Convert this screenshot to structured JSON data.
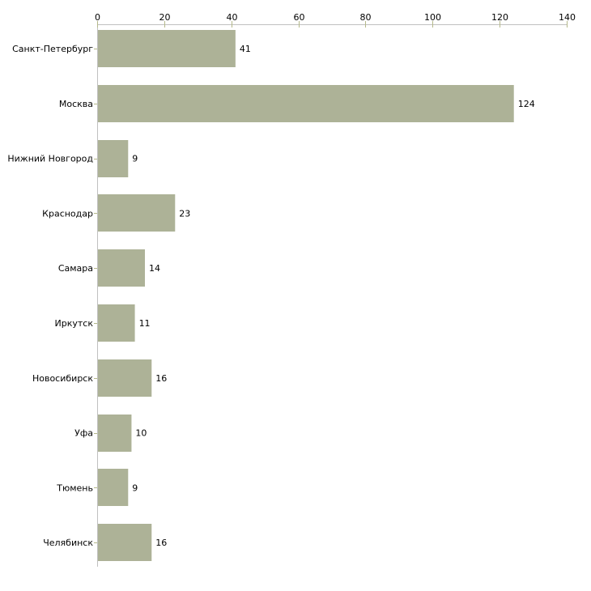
{
  "chart_data": {
    "type": "bar",
    "orientation": "horizontal",
    "categories": [
      "Санкт-Петербург",
      "Москва",
      "Нижний Новгород",
      "Краснодар",
      "Самара",
      "Иркутск",
      "Новосибирск",
      "Уфа",
      "Тюмень",
      "Челябинск"
    ],
    "values": [
      41,
      124,
      9,
      23,
      14,
      11,
      16,
      10,
      9,
      16
    ],
    "xlim": [
      0,
      140
    ],
    "xticks": [
      0,
      20,
      40,
      60,
      80,
      100,
      120,
      140
    ],
    "xtick_labels": [
      "0",
      "20",
      "40",
      "60",
      "80",
      "100",
      "120",
      "140"
    ],
    "x_axis_position": "top",
    "title": "",
    "xlabel": "",
    "ylabel": "",
    "grid": false,
    "bar_color": "#adb297",
    "axis_color": "#c0c0c0",
    "tick_color": "#b5b98a"
  }
}
